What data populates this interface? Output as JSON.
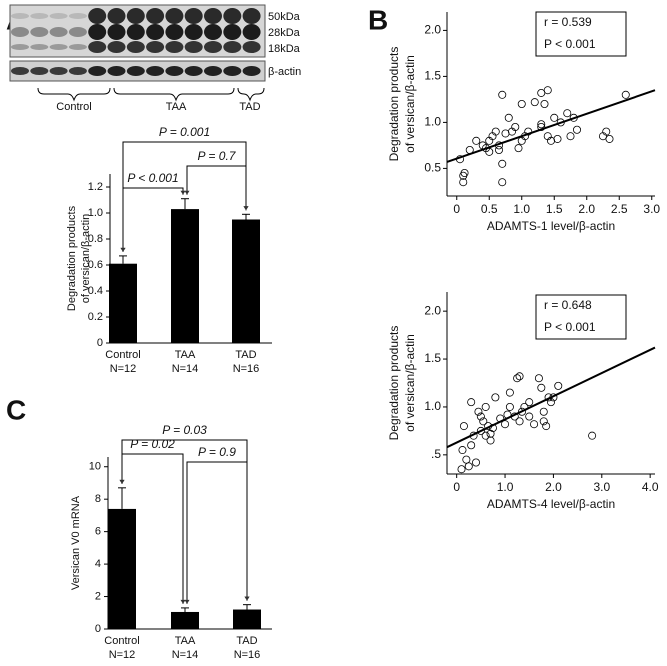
{
  "panels": [
    "A",
    "B",
    "C"
  ],
  "blot": {
    "bands": [
      "50kDa",
      "28kDa",
      "18kDa"
    ],
    "loading": "β-actin",
    "groups": [
      "Control",
      "TAA",
      "TAD"
    ]
  },
  "chart_data": [
    {
      "type": "bar",
      "ylabel": [
        "Degradation products",
        "of versican/β-actin"
      ],
      "categories": [
        "Control",
        "TAA",
        "TAD"
      ],
      "n_labels": [
        "N=12",
        "N=14",
        "N=16"
      ],
      "values": [
        0.61,
        1.03,
        0.95
      ],
      "errors": [
        0.06,
        0.08,
        0.04
      ],
      "color": "#000000",
      "ylim": [
        0,
        1.3
      ],
      "yticks": [
        0,
        0.2,
        0.4,
        0.6,
        0.8,
        {
          "value": 1,
          "label": "1.0"
        },
        1.2
      ],
      "annotations": [
        "P = 0.001",
        "P < 0.001",
        "P = 0.7"
      ]
    },
    {
      "type": "scatter",
      "xlabel": "ADAMTS-1 level/β-actin",
      "ylabel": [
        "Degradation products",
        "of versican/β-actin"
      ],
      "x": [
        0.1,
        0.12,
        0.1,
        0.05,
        0.2,
        0.3,
        0.4,
        0.45,
        0.5,
        0.5,
        0.55,
        0.6,
        0.65,
        0.7,
        0.7,
        0.75,
        0.8,
        0.85,
        0.9,
        0.95,
        1.0,
        1.0,
        1.05,
        1.1,
        1.2,
        1.3,
        1.3,
        1.35,
        1.4,
        1.4,
        1.45,
        1.5,
        1.55,
        1.6,
        1.7,
        1.75,
        1.8,
        1.85,
        2.25,
        2.3,
        2.35,
        2.6,
        0.7,
        0.65,
        1.3
      ],
      "values": [
        0.35,
        0.45,
        0.42,
        0.6,
        0.7,
        0.8,
        0.75,
        0.72,
        0.8,
        0.68,
        0.85,
        0.9,
        0.7,
        1.3,
        0.35,
        0.88,
        1.05,
        0.9,
        0.95,
        0.72,
        0.8,
        1.2,
        0.85,
        0.9,
        1.22,
        1.32,
        0.98,
        1.2,
        1.35,
        0.85,
        0.8,
        1.05,
        0.82,
        1.0,
        1.1,
        0.85,
        1.05,
        0.92,
        0.85,
        0.9,
        0.82,
        1.3,
        0.55,
        0.75,
        0.95
      ],
      "fit_x": [
        -0.15,
        3.05
      ],
      "fit_y": [
        0.57,
        1.35
      ],
      "color": "#000000",
      "xlim": [
        -0.15,
        3.05
      ],
      "ylim": [
        0.2,
        2.2
      ],
      "xticks": [
        0,
        0.5,
        {
          "value": 1,
          "label": "1.0"
        },
        1.5,
        {
          "value": 2,
          "label": "2.0"
        },
        2.5,
        {
          "value": 3,
          "label": "3.0"
        }
      ],
      "yticks": [
        0.5,
        {
          "value": 1,
          "label": "1.0"
        },
        1.5,
        {
          "value": 2,
          "label": "2.0"
        }
      ],
      "stats": [
        "r = 0.539",
        "P < 0.001"
      ]
    },
    {
      "type": "scatter",
      "xlabel": "ADAMTS-4 level/β-actin",
      "ylabel": [
        "Degradation products",
        "of versican/β-actin"
      ],
      "x": [
        0.1,
        0.12,
        0.15,
        0.2,
        0.25,
        0.3,
        0.35,
        0.4,
        0.45,
        0.5,
        0.55,
        0.6,
        0.6,
        0.65,
        0.7,
        0.75,
        0.8,
        0.9,
        1.0,
        1.05,
        1.1,
        1.2,
        1.25,
        1.3,
        1.3,
        1.35,
        1.4,
        1.5,
        1.6,
        1.7,
        1.75,
        1.8,
        1.85,
        1.9,
        1.95,
        2.0,
        2.1,
        2.8,
        0.3,
        0.5,
        0.7,
        1.1,
        1.5,
        1.8
      ],
      "values": [
        0.35,
        0.55,
        0.8,
        0.45,
        0.38,
        1.05,
        0.7,
        0.42,
        0.95,
        0.75,
        0.85,
        0.7,
        1.0,
        0.8,
        0.65,
        0.78,
        1.1,
        0.88,
        0.82,
        0.92,
        1.15,
        0.9,
        1.3,
        1.32,
        0.85,
        0.95,
        1.0,
        1.05,
        0.82,
        1.3,
        1.2,
        0.85,
        0.8,
        1.1,
        1.05,
        1.1,
        1.22,
        0.7,
        0.6,
        0.9,
        0.72,
        1.0,
        0.9,
        0.95
      ],
      "fit_x": [
        -0.2,
        4.1
      ],
      "fit_y": [
        0.58,
        1.62
      ],
      "color": "#000000",
      "xlim": [
        -0.2,
        4.1
      ],
      "ylim": [
        0.3,
        2.2
      ],
      "xticks": [
        0,
        {
          "value": 1,
          "label": "1.0"
        },
        {
          "value": 2,
          "label": "2.0"
        },
        {
          "value": 3,
          "label": "3.0"
        },
        {
          "value": 4,
          "label": "4.0"
        }
      ],
      "yticks": [
        {
          "value": 0.5,
          "label": ".5"
        },
        {
          "value": 1,
          "label": "1.0"
        },
        1.5,
        {
          "value": 2,
          "label": "2.0"
        }
      ],
      "stats": [
        "r = 0.648",
        "P < 0.001"
      ]
    },
    {
      "type": "bar",
      "ylabel": [
        "Versican V0 mRNA"
      ],
      "categories": [
        "Control",
        "TAA",
        "TAD"
      ],
      "n_labels": [
        "N=12",
        "N=14",
        "N=16"
      ],
      "values": [
        7.4,
        1.05,
        1.2
      ],
      "errors": [
        1.3,
        0.25,
        0.3
      ],
      "color": "#000000",
      "ylim": [
        0,
        10.6
      ],
      "yticks": [
        0,
        2,
        4,
        6,
        8,
        10
      ],
      "annotations": [
        "P = 0.03",
        "P = 0.02",
        "P = 0.9"
      ]
    }
  ]
}
